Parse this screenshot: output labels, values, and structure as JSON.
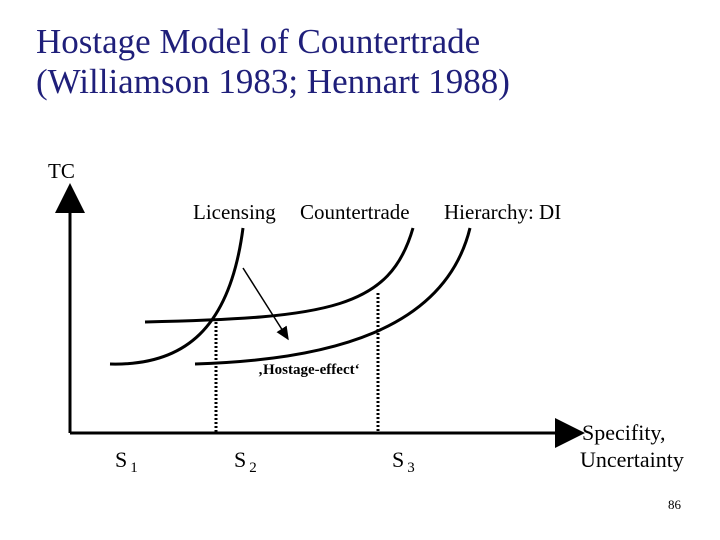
{
  "title_line1": "Hostage Model of Countertrade",
  "title_line2": "(Williamson 1983; Hennart 1988)",
  "y_axis_label": "TC",
  "curve_labels": {
    "licensing": "Licensing",
    "countertrade": "Countertrade",
    "hierarchy": "Hierarchy: DI"
  },
  "annotation": "‚Hostage-effect‘",
  "x_axis_label_line1": "Specifity,",
  "x_axis_label_line2": "Uncertainty",
  "points": [
    {
      "base": "S",
      "sub": "1"
    },
    {
      "base": "S",
      "sub": "2"
    },
    {
      "base": "S",
      "sub": "3"
    }
  ],
  "page_number": "86",
  "colors": {
    "title": "#1f1f7a",
    "lines": "#000000"
  }
}
